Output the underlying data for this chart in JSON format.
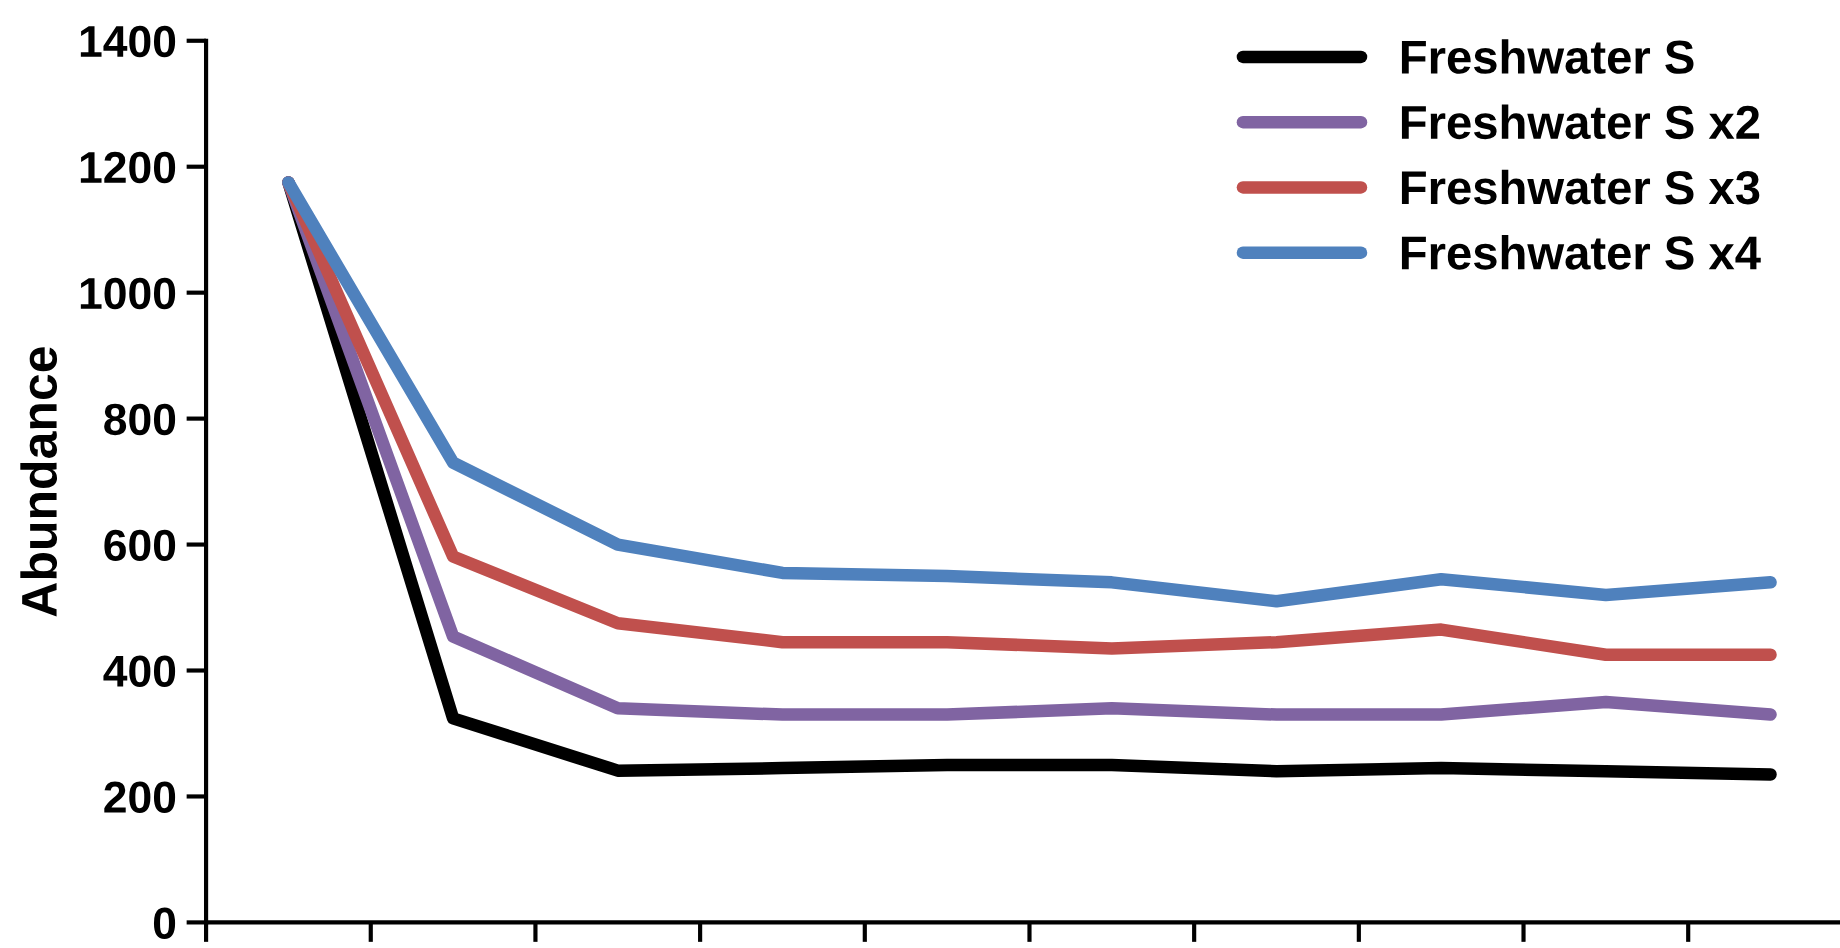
{
  "chart_data": {
    "type": "line",
    "ylabel": "Abundance",
    "categories": [
      null,
      null,
      null,
      null,
      null,
      null,
      null,
      null,
      null,
      null
    ],
    "series": [
      {
        "name": "Freshwater S",
        "color": "#000000",
        "values": [
          1175,
          324,
          241,
          245,
          250,
          250,
          240,
          245,
          240,
          235
        ]
      },
      {
        "name": "Freshwater S x2",
        "color": "#8064a2",
        "values": [
          1175,
          454,
          340,
          330,
          330,
          340,
          330,
          330,
          350,
          330
        ]
      },
      {
        "name": "Freshwater S x3",
        "color": "#c0504d",
        "values": [
          1175,
          581,
          475,
          445,
          445,
          435,
          445,
          465,
          425,
          425
        ]
      },
      {
        "name": "Freshwater S x4",
        "color": "#4f81bd",
        "values": [
          1175,
          730,
          600,
          555,
          550,
          540,
          510,
          545,
          520,
          540
        ]
      }
    ],
    "ylim": [
      0,
      1400
    ],
    "yticks": [
      0,
      200,
      400,
      600,
      800,
      1000,
      1200,
      1400
    ],
    "grid": false,
    "legend": "top right",
    "marker": "none",
    "line_style": "solid"
  }
}
